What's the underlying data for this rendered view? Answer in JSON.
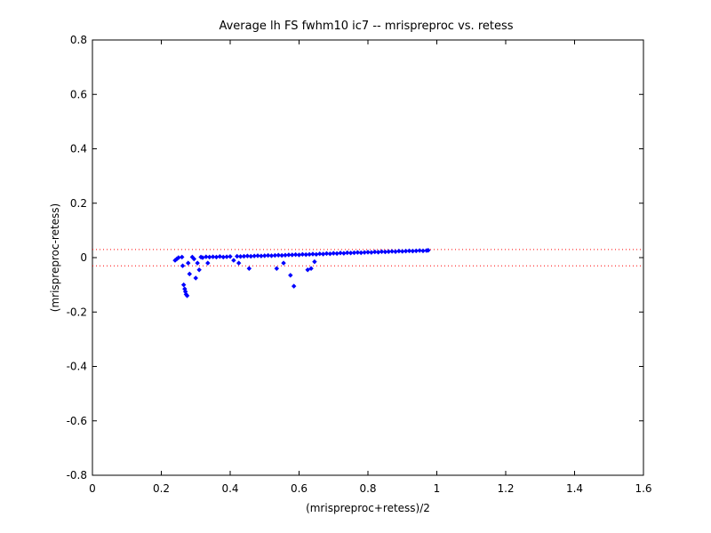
{
  "chart_data": {
    "type": "scatter",
    "title": "Average lh FS fwhm10 ic7 -- mrispreproc vs. retess",
    "xlabel": "(mrispreproc+retess)/2",
    "ylabel": "(mrispreproc-retess)",
    "xlim": [
      0,
      1.6
    ],
    "ylim": [
      -0.8,
      0.8
    ],
    "x_ticks": [
      0,
      0.2,
      0.4,
      0.6,
      0.8,
      1,
      1.2,
      1.4,
      1.6
    ],
    "x_tick_labels": [
      "0",
      "0.2",
      "0.4",
      "0.6",
      "0.8",
      "1",
      "1.2",
      "1.4",
      "1.6"
    ],
    "y_ticks": [
      0.8,
      0.6,
      0.4,
      0.2,
      0,
      -0.2,
      -0.4,
      -0.6,
      -0.8
    ],
    "y_tick_labels": [
      "0.8",
      "0.6",
      "0.4",
      "0.2",
      "0",
      "-0.2",
      "-0.4",
      "-0.6",
      "-0.8"
    ],
    "grid": false,
    "legend": null,
    "reference_lines": [
      {
        "y": 0.03,
        "style": "dotted",
        "color": "#ff0000"
      },
      {
        "y": -0.03,
        "style": "dotted",
        "color": "#ff0000"
      }
    ],
    "series": [
      {
        "marker": "diamond",
        "color": "#0000ff",
        "points": [
          [
            0.24,
            -0.01
          ],
          [
            0.245,
            -0.005
          ],
          [
            0.25,
            0.0
          ],
          [
            0.26,
            0.002
          ],
          [
            0.262,
            -0.03
          ],
          [
            0.265,
            -0.1
          ],
          [
            0.268,
            -0.115
          ],
          [
            0.27,
            -0.125
          ],
          [
            0.272,
            -0.135
          ],
          [
            0.275,
            -0.14
          ],
          [
            0.278,
            -0.02
          ],
          [
            0.282,
            -0.06
          ],
          [
            0.29,
            0.002
          ],
          [
            0.295,
            -0.005
          ],
          [
            0.3,
            -0.075
          ],
          [
            0.305,
            -0.02
          ],
          [
            0.31,
            -0.045
          ],
          [
            0.315,
            0.002
          ],
          [
            0.32,
            0.0
          ],
          [
            0.33,
            0.003
          ],
          [
            0.335,
            -0.02
          ],
          [
            0.34,
            0.002
          ],
          [
            0.35,
            0.003
          ],
          [
            0.36,
            0.002
          ],
          [
            0.37,
            0.004
          ],
          [
            0.38,
            0.002
          ],
          [
            0.39,
            0.003
          ],
          [
            0.4,
            0.004
          ],
          [
            0.41,
            -0.01
          ],
          [
            0.42,
            0.005
          ],
          [
            0.425,
            -0.02
          ],
          [
            0.43,
            0.004
          ],
          [
            0.44,
            0.005
          ],
          [
            0.45,
            0.006
          ],
          [
            0.455,
            -0.04
          ],
          [
            0.46,
            0.005
          ],
          [
            0.47,
            0.006
          ],
          [
            0.48,
            0.007
          ],
          [
            0.49,
            0.006
          ],
          [
            0.5,
            0.007
          ],
          [
            0.51,
            0.008
          ],
          [
            0.52,
            0.007
          ],
          [
            0.53,
            0.008
          ],
          [
            0.535,
            -0.04
          ],
          [
            0.54,
            0.009
          ],
          [
            0.55,
            0.008
          ],
          [
            0.555,
            -0.02
          ],
          [
            0.56,
            0.009
          ],
          [
            0.57,
            0.01
          ],
          [
            0.575,
            -0.065
          ],
          [
            0.58,
            0.01
          ],
          [
            0.585,
            -0.105
          ],
          [
            0.59,
            0.011
          ],
          [
            0.6,
            0.01
          ],
          [
            0.61,
            0.012
          ],
          [
            0.62,
            0.011
          ],
          [
            0.625,
            -0.045
          ],
          [
            0.63,
            0.012
          ],
          [
            0.635,
            -0.04
          ],
          [
            0.64,
            0.013
          ],
          [
            0.645,
            -0.015
          ],
          [
            0.65,
            0.012
          ],
          [
            0.66,
            0.014
          ],
          [
            0.67,
            0.013
          ],
          [
            0.68,
            0.015
          ],
          [
            0.69,
            0.014
          ],
          [
            0.7,
            0.016
          ],
          [
            0.71,
            0.015
          ],
          [
            0.72,
            0.017
          ],
          [
            0.73,
            0.016
          ],
          [
            0.74,
            0.018
          ],
          [
            0.75,
            0.017
          ],
          [
            0.76,
            0.018
          ],
          [
            0.77,
            0.019
          ],
          [
            0.78,
            0.018
          ],
          [
            0.79,
            0.019
          ],
          [
            0.8,
            0.02
          ],
          [
            0.81,
            0.019
          ],
          [
            0.82,
            0.021
          ],
          [
            0.83,
            0.02
          ],
          [
            0.84,
            0.022
          ],
          [
            0.85,
            0.021
          ],
          [
            0.86,
            0.022
          ],
          [
            0.87,
            0.023
          ],
          [
            0.88,
            0.022
          ],
          [
            0.89,
            0.024
          ],
          [
            0.9,
            0.023
          ],
          [
            0.91,
            0.024
          ],
          [
            0.92,
            0.025
          ],
          [
            0.93,
            0.024
          ],
          [
            0.94,
            0.025
          ],
          [
            0.95,
            0.026
          ],
          [
            0.96,
            0.025
          ],
          [
            0.97,
            0.026
          ],
          [
            0.975,
            0.027
          ]
        ]
      }
    ]
  }
}
